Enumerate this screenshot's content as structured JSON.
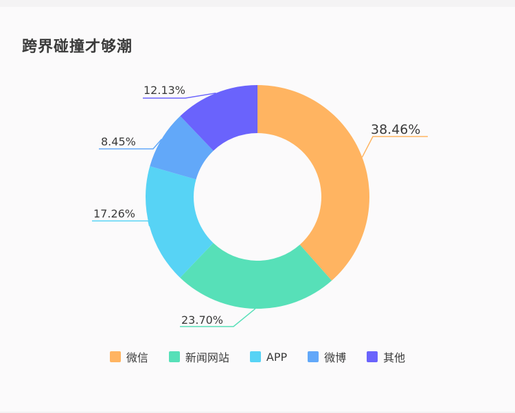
{
  "title": "跨界碰撞才够潮",
  "chart_data": {
    "type": "pie",
    "title": "跨界碰撞才够潮",
    "labels": [
      "微信",
      "新闻网站",
      "APP",
      "微博",
      "其他"
    ],
    "values": [
      38.46,
      23.7,
      17.26,
      8.45,
      12.13
    ],
    "data_labels": [
      "38.46%",
      "23.70%",
      "17.26%",
      "8.45%",
      "12.13%"
    ],
    "colors": [
      "#ffb461",
      "#57e0b8",
      "#57d3f5",
      "#62a8f9",
      "#6a63fc"
    ],
    "donut": true,
    "legend_position": "bottom"
  },
  "legend": [
    {
      "label": "微信",
      "color": "#ffb461"
    },
    {
      "label": "新闻网站",
      "color": "#57e0b8"
    },
    {
      "label": "APP",
      "color": "#57d3f5"
    },
    {
      "label": "微博",
      "color": "#62a8f9"
    },
    {
      "label": "其他",
      "color": "#6a63fc"
    }
  ]
}
